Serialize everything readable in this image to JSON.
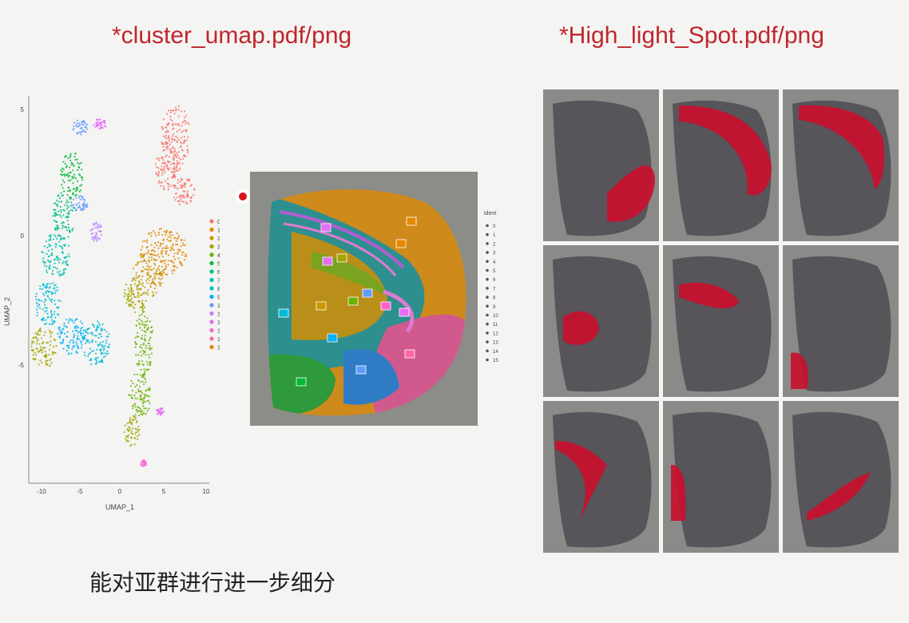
{
  "titles": {
    "left": "*cluster_umap.pdf/png",
    "right": "*High_light_Spot.pdf/png"
  },
  "caption": "能对亚群进行进一步细分",
  "umap": {
    "xlabel": "UMAP_1",
    "ylabel": "UMAP_2",
    "x_ticks": [
      "-10",
      "-5",
      "0",
      "5",
      "10"
    ],
    "y_ticks": [
      "5",
      "0",
      "-5"
    ],
    "legend": [
      "0",
      "1",
      "2",
      "3",
      "4",
      "5",
      "6",
      "7",
      "8",
      "9",
      "10",
      "11",
      "12",
      "13",
      "14",
      "15"
    ]
  },
  "spatial": {
    "legend_title": "ident",
    "legend": [
      "0",
      "1",
      "2",
      "3",
      "4",
      "5",
      "6",
      "7",
      "8",
      "9",
      "10",
      "11",
      "12",
      "13",
      "14",
      "15"
    ]
  },
  "cluster_colors": [
    "#f8766d",
    "#e58700",
    "#c99800",
    "#a3a500",
    "#6bb100",
    "#00ba38",
    "#00bf7d",
    "#00c0af",
    "#00bcd8",
    "#00b0f6",
    "#619cff",
    "#b983ff",
    "#e76bf3",
    "#fd61d1",
    "#ff67a4",
    "#e68613"
  ],
  "highlight": {
    "tiles": 9,
    "spot_color": "#c8102e",
    "tissue_color": "#57545a",
    "bg_color": "#8a8a88"
  }
}
